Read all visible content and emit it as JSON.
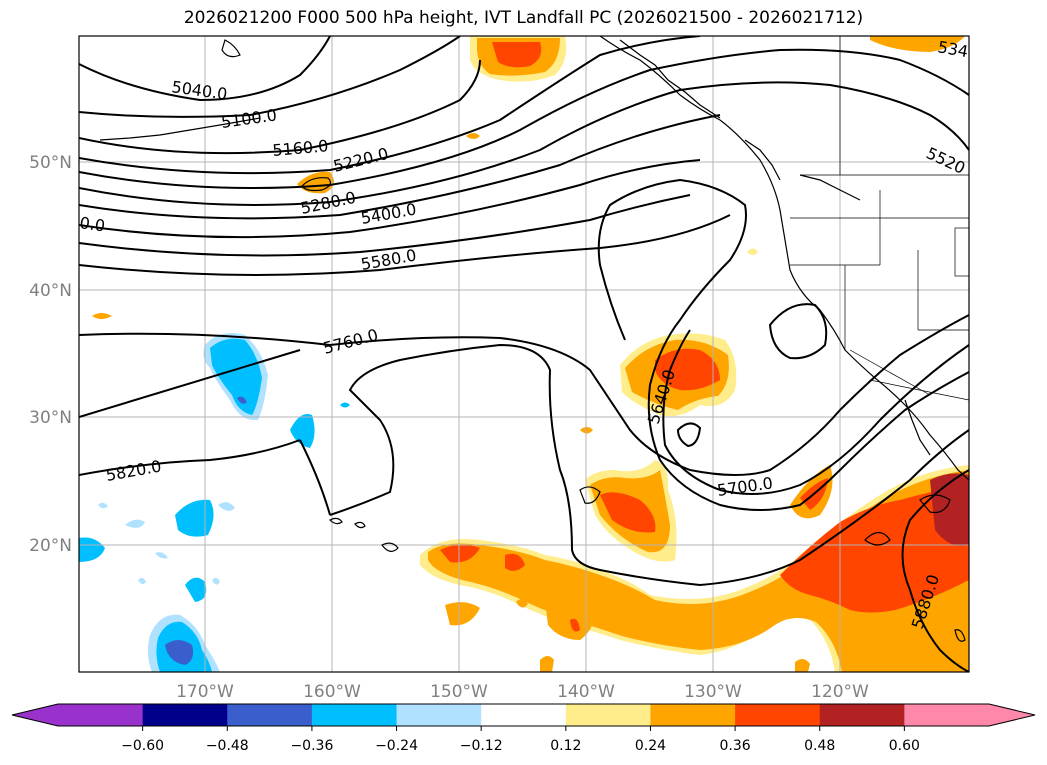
{
  "title": "2026021200 F000 500 hPa height, IVT Landfall PC (2026021500 - 2026021712)",
  "map": {
    "lat_labels": [
      "50°N",
      "40°N",
      "30°N",
      "20°N"
    ],
    "lon_labels": [
      "170°W",
      "160°W",
      "150°W",
      "140°W",
      "130°W",
      "120°W"
    ],
    "contour_labels": [
      "5040.0",
      "5100.0",
      "5160.0",
      "5220.0",
      "5280.0",
      "5400.0",
      "0.0",
      "5580.0",
      "5760.0",
      "5820.0",
      "5640.0",
      "5700.0",
      "5880.0",
      "5520",
      "534"
    ]
  },
  "colorbar": {
    "ticks": [
      "−0.60",
      "−0.48",
      "−0.36",
      "−0.24",
      "−0.12",
      "0.12",
      "0.24",
      "0.36",
      "0.48",
      "0.60"
    ],
    "colors": [
      "#9932cc",
      "#00008b",
      "#3a5fcd",
      "#00bfff",
      "#b0e2ff",
      "#ffffff",
      "#ffec8b",
      "#ffa500",
      "#ff4500",
      "#b22222",
      "#ff88aa"
    ]
  },
  "colors": {
    "blue_light": "#b0e2ff",
    "blue": "#00bfff",
    "blue_dark": "#3a5fcd",
    "yellow": "#ffec8b",
    "orange": "#ffa500",
    "red_orange": "#ff4500",
    "dark_red": "#b22222"
  }
}
